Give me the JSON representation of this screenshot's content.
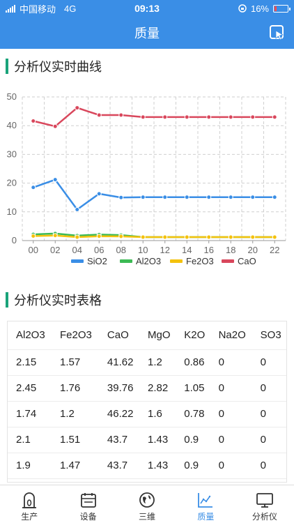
{
  "status": {
    "carrier": "中国移动",
    "network": "4G",
    "time": "09:13",
    "battery_text": "16%",
    "battery_level": 0.16
  },
  "header": {
    "title": "质量"
  },
  "chart_section": {
    "title": "分析仪实时曲线"
  },
  "chart_data": {
    "type": "line",
    "categories": [
      "00",
      "02",
      "04",
      "06",
      "08",
      "10",
      "12",
      "14",
      "16",
      "18",
      "20",
      "22"
    ],
    "ylim": [
      0,
      50
    ],
    "yticks": [
      0,
      10,
      20,
      30,
      40,
      50
    ],
    "grid": true,
    "legend_position": "bottom",
    "series": [
      {
        "name": "SiO2",
        "color": "#3a8ee6",
        "values": [
          18.5,
          21.2,
          10.8,
          16.3,
          15.0,
          15.1,
          15.1,
          15.1,
          15.1,
          15.1,
          15.1,
          15.1
        ]
      },
      {
        "name": "Al2O3",
        "color": "#3cba54",
        "values": [
          2.15,
          2.45,
          1.74,
          2.1,
          1.9,
          1.2,
          1.2,
          1.2,
          1.2,
          1.2,
          1.2,
          1.2
        ]
      },
      {
        "name": "Fe2O3",
        "color": "#f4c20d",
        "values": [
          1.57,
          1.76,
          1.2,
          1.51,
          1.47,
          1.2,
          1.2,
          1.2,
          1.2,
          1.2,
          1.2,
          1.2
        ]
      },
      {
        "name": "CaO",
        "color": "#d9475c",
        "values": [
          41.62,
          39.76,
          46.22,
          43.7,
          43.7,
          43.0,
          43.0,
          43.0,
          43.0,
          43.0,
          43.0,
          43.0
        ]
      }
    ]
  },
  "table_section": {
    "title": "分析仪实时表格"
  },
  "table": {
    "headers": [
      "Al2O3",
      "Fe2O3",
      "CaO",
      "MgO",
      "K2O",
      "Na2O",
      "SO3"
    ],
    "rows": [
      [
        "2.15",
        "1.57",
        "41.62",
        "1.2",
        "0.86",
        "0",
        "0"
      ],
      [
        "2.45",
        "1.76",
        "39.76",
        "2.82",
        "1.05",
        "0",
        "0"
      ],
      [
        "1.74",
        "1.2",
        "46.22",
        "1.6",
        "0.78",
        "0",
        "0"
      ],
      [
        "2.1",
        "1.51",
        "43.7",
        "1.43",
        "0.9",
        "0",
        "0"
      ],
      [
        "1.9",
        "1.47",
        "43.7",
        "1.43",
        "0.9",
        "0",
        "0"
      ]
    ]
  },
  "tabs": [
    {
      "label": "生产",
      "icon": "production-icon"
    },
    {
      "label": "设备",
      "icon": "equipment-icon"
    },
    {
      "label": "三维",
      "icon": "3d-icon"
    },
    {
      "label": "质量",
      "icon": "quality-icon",
      "active": true
    },
    {
      "label": "分析仪",
      "icon": "analyzer-icon"
    }
  ]
}
